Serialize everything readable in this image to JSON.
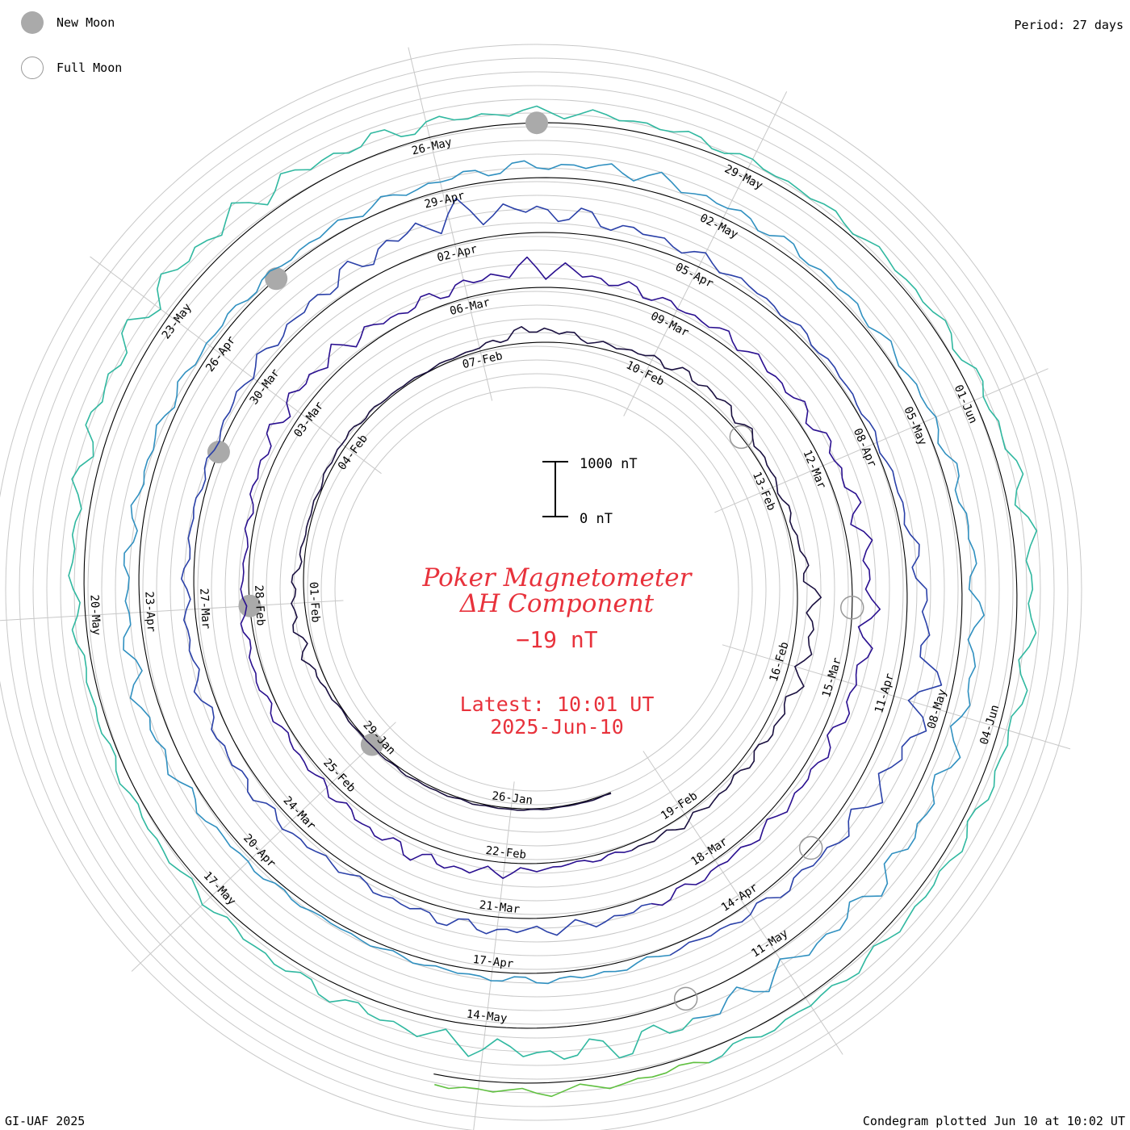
{
  "legend": {
    "new_moon_label": "New Moon",
    "full_moon_label": "Full Moon",
    "new_moon_color": "#aaaaaa",
    "full_moon_color": "#999999"
  },
  "header": {
    "period": "Period: 27 days"
  },
  "footer": {
    "credit": "GI-UAF 2025",
    "plotted": "Condegram plotted Jun 10 at 10:02 UT"
  },
  "center": {
    "title_line1": "Poker Magnetometer",
    "title_line2": "ΔH Component",
    "current_value": "−19 nT",
    "latest_label": "Latest: 10:01 UT",
    "latest_date": "2025-Jun-10",
    "accent_color": "#e8323c"
  },
  "chart_data": {
    "type": "condegram (spiral line plot)",
    "title": "Poker Magnetometer ΔH Component",
    "period_days": 27,
    "scale_bar": {
      "top_label": "1000 nT",
      "bottom_label": "0 nT",
      "value_nT": 1000
    },
    "start_date": "2025-01-24",
    "end_date": "2025-06-10",
    "date_labels": [
      "26-Jan",
      "29-Jan",
      "01-Feb",
      "04-Feb",
      "07-Feb",
      "10-Feb",
      "13-Feb",
      "16-Feb",
      "19-Feb",
      "22-Feb",
      "25-Feb",
      "28-Feb",
      "03-Mar",
      "06-Mar",
      "09-Mar",
      "12-Mar",
      "15-Mar",
      "18-Mar",
      "21-Mar",
      "24-Mar",
      "27-Mar",
      "30-Mar",
      "02-Apr",
      "05-Apr",
      "08-Apr",
      "11-Apr",
      "14-Apr",
      "17-Apr",
      "20-Apr",
      "23-Apr",
      "26-Apr",
      "29-Apr",
      "02-May",
      "05-May",
      "08-May",
      "11-May",
      "14-May",
      "17-May",
      "20-May",
      "23-May",
      "26-May",
      "29-May",
      "01-Jun",
      "04-Jun"
    ],
    "new_moons": [
      "2025-01-29",
      "2025-02-28",
      "2025-03-29",
      "2025-04-27",
      "2025-05-27"
    ],
    "full_moons": [
      "2025-02-12",
      "2025-03-14",
      "2025-04-13",
      "2025-05-12"
    ],
    "series_colors": [
      "#1a1040",
      "#2a1090",
      "#2a40a8",
      "#3090c0",
      "#30b8a0",
      "#60c040",
      "#a8b820",
      "#c09020",
      "#c05010",
      "#b02010"
    ],
    "daily_dH_nT": [
      20,
      15,
      25,
      30,
      40,
      20,
      30,
      180,
      220,
      60,
      40,
      90,
      40,
      20,
      60,
      260,
      80,
      140,
      200,
      160,
      80,
      120,
      300,
      260,
      180,
      120,
      140,
      100,
      60,
      180,
      260,
      240,
      140,
      120,
      160,
      120,
      80,
      200,
      300,
      280,
      180,
      240,
      380,
      220,
      160,
      180,
      200,
      260,
      300,
      340,
      260,
      200,
      160,
      140,
      180,
      200,
      240,
      200,
      120,
      180,
      220,
      200,
      160,
      120,
      100,
      180,
      220,
      360,
      520,
      400,
      240,
      180,
      120,
      100,
      80,
      140,
      320,
      600,
      380,
      240,
      160,
      100,
      140,
      120,
      80,
      60,
      120,
      200,
      320,
      240,
      180,
      160,
      140,
      120,
      160,
      180,
      220,
      260,
      200,
      160,
      140,
      180,
      200,
      260,
      300,
      340,
      360,
      320,
      420,
      500,
      380,
      260,
      200,
      160,
      140,
      120,
      180,
      240,
      360,
      420,
      380,
      320,
      240,
      200,
      180,
      140,
      120,
      160,
      220,
      300,
      260,
      220,
      180,
      160
    ]
  }
}
